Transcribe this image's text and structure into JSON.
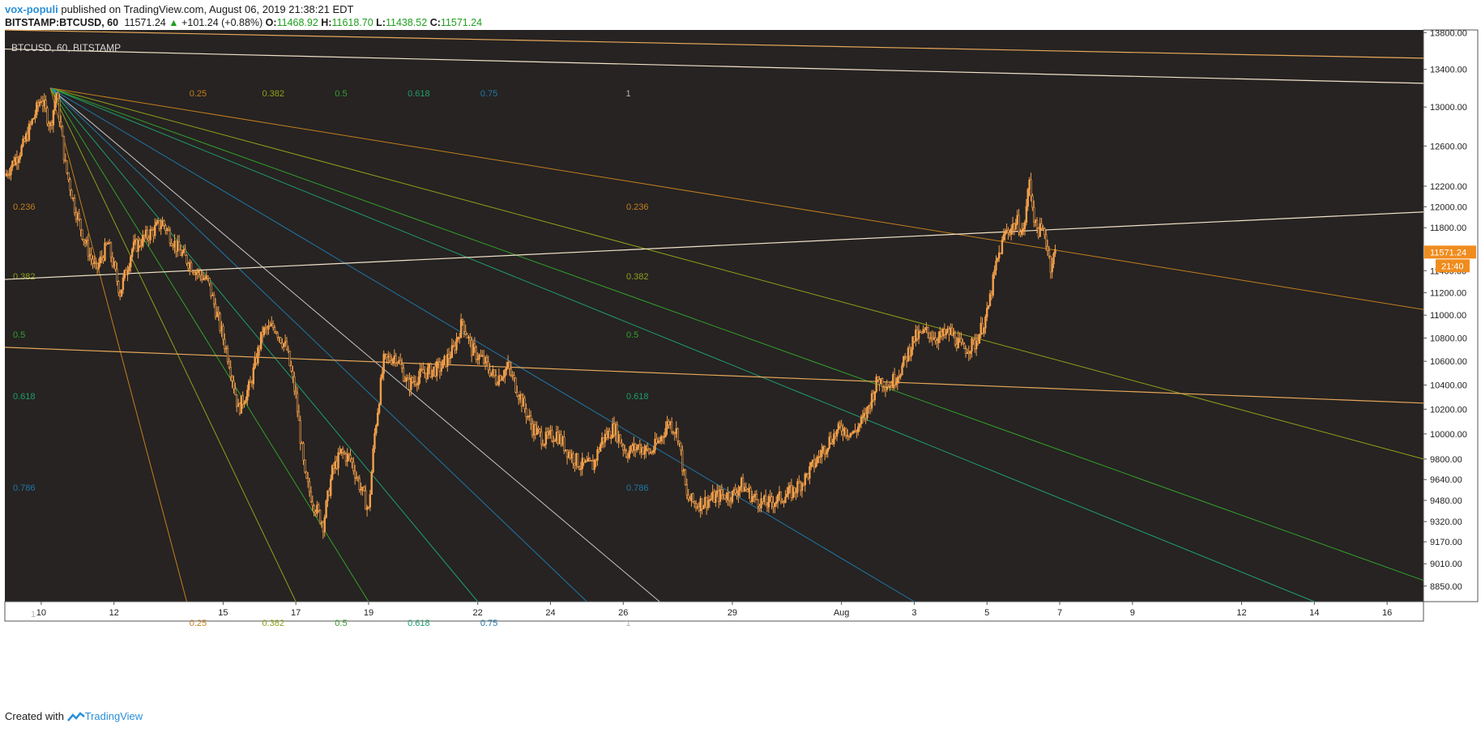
{
  "header": {
    "author": "vox-populi",
    "published_text": "published on TradingView.com, August 06, 2019 21:38:21 EDT",
    "symbol_line": "BITSTAMP:BTCUSD, 60",
    "last": "11571.24",
    "change_arrow": "▲",
    "change": "+101.24 (+0.88%)",
    "o_label": "O:",
    "o": "11468.92",
    "h_label": "H:",
    "h": "11618.70",
    "l_label": "L:",
    "l": "11438.52",
    "c_label": "C:",
    "c": "11571.24"
  },
  "footer": {
    "created_with": "Created with",
    "brand": "TradingView"
  },
  "colors": {
    "background": "#262322",
    "candle": "#f5a04a",
    "price_tag": "#f08c1e",
    "fib_0.236": "#c47e1d",
    "fib_0.382": "#8ea11a",
    "fib_0.5": "#33a02c",
    "fib_0.618": "#1f9e6d",
    "fib_0.786": "#2077a8",
    "fib_1": "#c8c8c8",
    "trendline": "#f2e2c8",
    "channel": "#e8a85a"
  },
  "chart_data": {
    "type": "candlestick",
    "title": "BTCUSD, 60, BITSTAMP",
    "y_scale": "log",
    "ylim": [
      8740,
      13830
    ],
    "xlim_days": [
      "2019-07-09",
      "2019-08-17"
    ],
    "y_ticks": [
      "13800.00",
      "13400.00",
      "13000.00",
      "12600.00",
      "12200.00",
      "12000.00",
      "11800.00",
      "11400.00",
      "11200.00",
      "11000.00",
      "10800.00",
      "10600.00",
      "10400.00",
      "10200.00",
      "10000.00",
      "9800.00",
      "9640.00",
      "9480.00",
      "9320.00",
      "9170.00",
      "9010.00",
      "8850.00"
    ],
    "x_ticks": [
      {
        "label": "10",
        "date": "2019-07-10"
      },
      {
        "label": "12",
        "date": "2019-07-12"
      },
      {
        "label": "15",
        "date": "2019-07-15"
      },
      {
        "label": "17",
        "date": "2019-07-17"
      },
      {
        "label": "19",
        "date": "2019-07-19"
      },
      {
        "label": "22",
        "date": "2019-07-22"
      },
      {
        "label": "24",
        "date": "2019-07-24"
      },
      {
        "label": "26",
        "date": "2019-07-26"
      },
      {
        "label": "29",
        "date": "2019-07-29"
      },
      {
        "label": "Aug",
        "date": "2019-08-01"
      },
      {
        "label": "3",
        "date": "2019-08-03"
      },
      {
        "label": "5",
        "date": "2019-08-05"
      },
      {
        "label": "7",
        "date": "2019-08-07"
      },
      {
        "label": "9",
        "date": "2019-08-09"
      },
      {
        "label": "12",
        "date": "2019-08-12"
      },
      {
        "label": "14",
        "date": "2019-08-14"
      },
      {
        "label": "16",
        "date": "2019-08-16"
      }
    ],
    "last_price": "11571.24",
    "countdown": "21:40",
    "price_path": [
      [
        "2019-07-09 00:00",
        12300
      ],
      [
        "2019-07-09 12:00",
        12600
      ],
      [
        "2019-07-10 00:00",
        13100
      ],
      [
        "2019-07-10 06:00",
        12800
      ],
      [
        "2019-07-10 10:00",
        13150
      ],
      [
        "2019-07-10 16:00",
        12400
      ],
      [
        "2019-07-10 22:00",
        12000
      ],
      [
        "2019-07-11 04:00",
        11700
      ],
      [
        "2019-07-11 12:00",
        11400
      ],
      [
        "2019-07-11 20:00",
        11650
      ],
      [
        "2019-07-12 04:00",
        11200
      ],
      [
        "2019-07-12 12:00",
        11600
      ],
      [
        "2019-07-13 00:00",
        11750
      ],
      [
        "2019-07-13 08:00",
        11850
      ],
      [
        "2019-07-13 18:00",
        11600
      ],
      [
        "2019-07-14 06:00",
        11400
      ],
      [
        "2019-07-14 14:00",
        11300
      ],
      [
        "2019-07-14 20:00",
        11000
      ],
      [
        "2019-07-15 04:00",
        10600
      ],
      [
        "2019-07-15 10:00",
        10200
      ],
      [
        "2019-07-15 18:00",
        10400
      ],
      [
        "2019-07-16 02:00",
        10850
      ],
      [
        "2019-07-16 10:00",
        10900
      ],
      [
        "2019-07-16 18:00",
        10700
      ],
      [
        "2019-07-17 00:00",
        10300
      ],
      [
        "2019-07-17 06:00",
        9650
      ],
      [
        "2019-07-17 12:00",
        9450
      ],
      [
        "2019-07-17 18:00",
        9300
      ],
      [
        "2019-07-18 00:00",
        9700
      ],
      [
        "2019-07-18 06:00",
        9850
      ],
      [
        "2019-07-18 12:00",
        9800
      ],
      [
        "2019-07-18 18:00",
        9600
      ],
      [
        "2019-07-19 00:00",
        9400
      ],
      [
        "2019-07-19 04:00",
        10000
      ],
      [
        "2019-07-19 10:00",
        10600
      ],
      [
        "2019-07-19 18:00",
        10650
      ],
      [
        "2019-07-20 02:00",
        10400
      ],
      [
        "2019-07-20 12:00",
        10500
      ],
      [
        "2019-07-21 00:00",
        10550
      ],
      [
        "2019-07-21 08:00",
        10700
      ],
      [
        "2019-07-21 14:00",
        10950
      ],
      [
        "2019-07-21 20:00",
        10700
      ],
      [
        "2019-07-22 04:00",
        10600
      ],
      [
        "2019-07-22 12:00",
        10450
      ],
      [
        "2019-07-22 20:00",
        10550
      ],
      [
        "2019-07-23 04:00",
        10300
      ],
      [
        "2019-07-23 12:00",
        10050
      ],
      [
        "2019-07-23 20:00",
        9950
      ],
      [
        "2019-07-24 04:00",
        10000
      ],
      [
        "2019-07-24 12:00",
        9850
      ],
      [
        "2019-07-24 20:00",
        9750
      ],
      [
        "2019-07-25 04:00",
        9750
      ],
      [
        "2019-07-25 10:00",
        9950
      ],
      [
        "2019-07-25 18:00",
        10050
      ],
      [
        "2019-07-26 02:00",
        9850
      ],
      [
        "2019-07-26 10:00",
        9900
      ],
      [
        "2019-07-26 18:00",
        9850
      ],
      [
        "2019-07-27 00:00",
        9950
      ],
      [
        "2019-07-27 06:00",
        10100
      ],
      [
        "2019-07-27 12:00",
        10000
      ],
      [
        "2019-07-27 18:00",
        9500
      ],
      [
        "2019-07-28 00:00",
        9450
      ],
      [
        "2019-07-28 08:00",
        9480
      ],
      [
        "2019-07-28 16:00",
        9520
      ],
      [
        "2019-07-29 00:00",
        9520
      ],
      [
        "2019-07-29 06:00",
        9600
      ],
      [
        "2019-07-29 14:00",
        9500
      ],
      [
        "2019-07-29 22:00",
        9450
      ],
      [
        "2019-07-30 08:00",
        9500
      ],
      [
        "2019-07-30 16:00",
        9550
      ],
      [
        "2019-07-31 00:00",
        9650
      ],
      [
        "2019-07-31 08:00",
        9800
      ],
      [
        "2019-07-31 16:00",
        9950
      ],
      [
        "2019-08-01 00:00",
        10050
      ],
      [
        "2019-08-01 08:00",
        10000
      ],
      [
        "2019-08-01 16:00",
        10150
      ],
      [
        "2019-08-02 00:00",
        10450
      ],
      [
        "2019-08-02 08:00",
        10400
      ],
      [
        "2019-08-02 16:00",
        10550
      ],
      [
        "2019-08-03 00:00",
        10800
      ],
      [
        "2019-08-03 08:00",
        10850
      ],
      [
        "2019-08-03 16:00",
        10800
      ],
      [
        "2019-08-04 00:00",
        10850
      ],
      [
        "2019-08-04 08:00",
        10700
      ],
      [
        "2019-08-04 16:00",
        10750
      ],
      [
        "2019-08-05 00:00",
        11000
      ],
      [
        "2019-08-05 06:00",
        11450
      ],
      [
        "2019-08-05 12:00",
        11750
      ],
      [
        "2019-08-05 20:00",
        11850
      ],
      [
        "2019-08-06 00:00",
        11750
      ],
      [
        "2019-08-06 04:00",
        12250
      ],
      [
        "2019-08-06 08:00",
        11800
      ],
      [
        "2019-08-06 14:00",
        11750
      ],
      [
        "2019-08-06 18:00",
        11450
      ],
      [
        "2019-08-06 21:00",
        11571
      ]
    ],
    "fib_speed_fan": {
      "pivot": {
        "date": "2019-07-10 06:00",
        "price": 13200
      },
      "time_levels": [
        "0.25",
        "0.382",
        "0.5",
        "0.618",
        "0.75",
        "1"
      ],
      "price_levels": [
        "0.236",
        "0.382",
        "0.5",
        "0.618",
        "0.786",
        "1"
      ],
      "fan_rays": [
        {
          "level": "0.236",
          "through": {
            "date": "2019-08-17",
            "price": 11050
          }
        },
        {
          "level": "0.382",
          "through": {
            "date": "2019-08-17",
            "price": 9800
          }
        },
        {
          "level": "0.5",
          "through": {
            "date": "2019-08-17",
            "price": 8890
          }
        },
        {
          "level": "0.618",
          "through": {
            "date": "2019-08-14",
            "price": 8740
          }
        },
        {
          "level": "0.786",
          "through": {
            "date": "2019-08-03",
            "price": 8740
          }
        },
        {
          "level": "1",
          "through": {
            "date": "2019-07-27",
            "price": 8740
          }
        },
        {
          "level": "0.75",
          "through": {
            "date": "2019-07-25",
            "price": 8740
          }
        },
        {
          "level": "0.618",
          "through": {
            "date": "2019-07-22",
            "price": 8740
          }
        },
        {
          "level": "0.5",
          "through": {
            "date": "2019-07-19",
            "price": 8740
          }
        },
        {
          "level": "0.382",
          "through": {
            "date": "2019-07-17",
            "price": 8740
          }
        },
        {
          "level": "0.25",
          "through": {
            "date": "2019-07-14",
            "price": 8740
          }
        }
      ]
    },
    "trendlines": [
      {
        "from": {
          "date": "2019-07-09",
          "price": 11320
        },
        "to": {
          "date": "2019-08-17",
          "price": 11950
        },
        "kind": "trendline"
      },
      {
        "from": {
          "date": "2019-07-09",
          "price": 10720
        },
        "to": {
          "date": "2019-08-17",
          "price": 10250
        },
        "kind": "channel"
      },
      {
        "from": {
          "date": "2019-07-09",
          "price": 13620
        },
        "to": {
          "date": "2019-08-17",
          "price": 13250
        },
        "kind": "trendline"
      },
      {
        "from": {
          "date": "2019-07-09",
          "price": 13830
        },
        "to": {
          "date": "2019-08-17",
          "price": 13520
        },
        "kind": "channel"
      }
    ]
  }
}
